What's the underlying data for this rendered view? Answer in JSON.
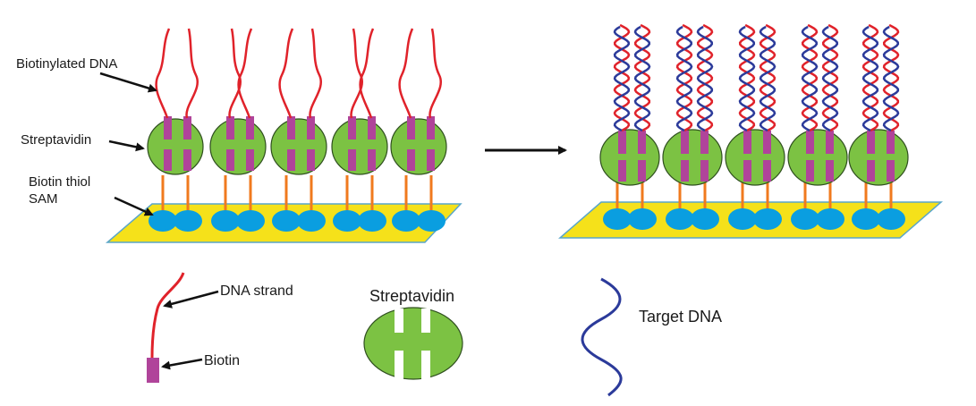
{
  "labels": {
    "biotinylated_dna": "Biotinylated DNA",
    "streptavidin": "Streptavidin",
    "biotin_thiol_line1": "Biotin thiol",
    "biotin_thiol_line2": "SAM",
    "legend_dna_strand": "DNA strand",
    "legend_biotin": "Biotin",
    "legend_streptavidin": "Streptavidin",
    "legend_target_dna": "Target DNA"
  },
  "colors": {
    "gold_surface": "#f5e11a",
    "surface_edge": "#5aa6c9",
    "biotin_thiol_head": "#0a9ee0",
    "thiol_linker": "#f07a1e",
    "streptavidin": "#7cc243",
    "streptavidin_edge": "#2f4f1f",
    "biotin": "#b0449a",
    "dna_strand": "#e0222a",
    "target_dna": "#2b3a9a",
    "arrow": "#111111"
  },
  "panels": {
    "left": {
      "streptavidin_count": 5,
      "state": "single-stranded probe"
    },
    "right": {
      "streptavidin_count": 5,
      "state": "hybridized double helix"
    }
  }
}
